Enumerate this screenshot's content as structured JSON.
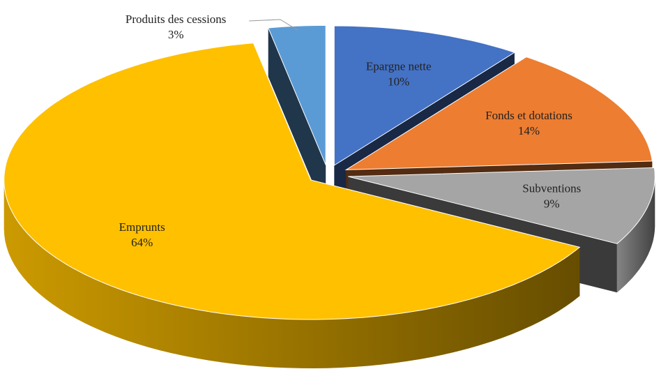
{
  "chart_data": {
    "type": "pie3d",
    "categories": [
      "Epargne nette",
      "Fonds et dotations",
      "Subventions",
      "Emprunts",
      "Produits des cessions"
    ],
    "values": [
      10,
      14,
      9,
      64,
      3
    ],
    "value_labels": [
      "10%",
      "14%",
      "9%",
      "64%",
      "3%"
    ],
    "colors": [
      "#4472c4",
      "#ed7d31",
      "#a5a5a5",
      "#ffc000",
      "#5b9bd5"
    ]
  }
}
